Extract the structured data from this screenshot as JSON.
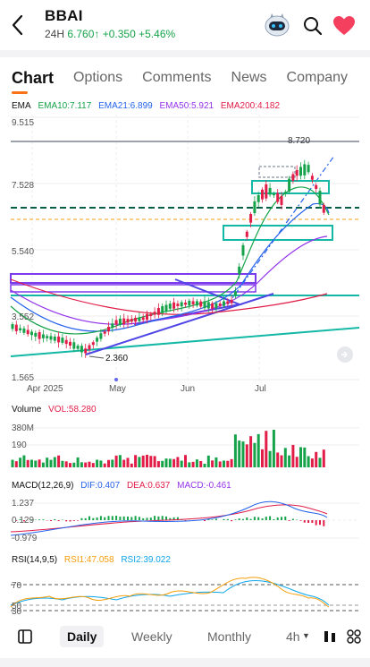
{
  "header": {
    "ticker": "BBAI",
    "session": "24H",
    "price": "6.760",
    "change": "+0.350",
    "change_pct": "+5.46%",
    "icons": [
      "back-arrow-icon",
      "robot-assistant-icon",
      "search-icon",
      "heart-icon"
    ],
    "colors": {
      "up": "#16a34a",
      "heart": "#f43f5e"
    }
  },
  "tabs": [
    {
      "label": "Chart",
      "active": true
    },
    {
      "label": "Options"
    },
    {
      "label": "Comments"
    },
    {
      "label": "News"
    },
    {
      "label": "Company"
    }
  ],
  "main_chart": {
    "indicator_name": "EMA",
    "ema10": "EMA10:7.117",
    "ema21": "EMA21:6.899",
    "ema50": "EMA50:5.921",
    "ema200": "EMA200:4.182",
    "y_ticks": [
      "9.515",
      "7.528",
      "5.540",
      "3.552",
      "1.565"
    ],
    "x_ticks": [
      "Apr 2025",
      "May",
      "Jun",
      "Jul"
    ],
    "high_label": "8.720",
    "low_label": "2.360",
    "colors": {
      "ema10": "#16a34a",
      "ema21": "#2563eb",
      "ema50": "#9333ea",
      "ema200": "#e11d48",
      "up": "#16a34a",
      "down": "#e11d48"
    }
  },
  "volume": {
    "title": "Volume",
    "value": "VOL:58.280",
    "y_ticks": [
      "380M",
      "190"
    ]
  },
  "macd": {
    "title": "MACD(12,26,9)",
    "dif": "DIF:0.407",
    "dea": "DEA:0.637",
    "macd": "MACD:-0.461",
    "y_ticks": [
      "1.237",
      "0.129",
      "-0.979"
    ]
  },
  "rsi": {
    "title": "RSI(14,9,5)",
    "rsi1": "RSI1:47.058",
    "rsi2": "RSI2:39.022",
    "y_ticks": [
      "70",
      "50",
      "30"
    ]
  },
  "bottom_bar": {
    "periods": [
      "Daily",
      "Weekly",
      "Monthly",
      "4h"
    ],
    "active": "Daily",
    "icons": [
      "layout-panel-icon",
      "dropdown-caret-icon",
      "candlestick-type-icon",
      "grid-icon"
    ]
  }
}
